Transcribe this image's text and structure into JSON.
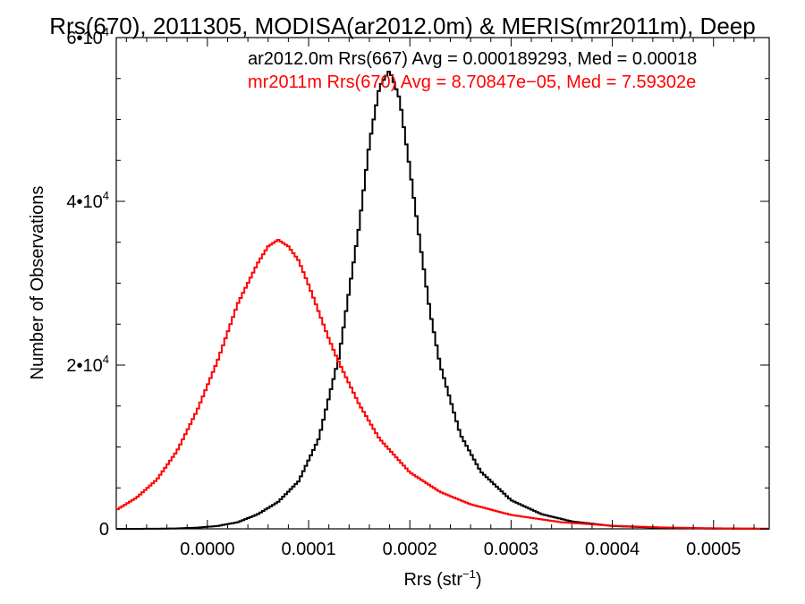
{
  "chart_data": {
    "type": "line",
    "title": "Rrs(670), 2011305, MODISA(ar2012.0m) & MERIS(mr2011m), Deep",
    "xlabel_base": "Rrs (str",
    "xlabel_exp": "−1",
    "xlabel_close": ")",
    "ylabel": "Number of Observations",
    "xlim": [
      -9e-05,
      0.000555
    ],
    "ylim": [
      0,
      60000
    ],
    "x_ticks": [
      {
        "value": 0.0,
        "label": "0.0000"
      },
      {
        "value": 0.0001,
        "label": "0.0001"
      },
      {
        "value": 0.0002,
        "label": "0.0002"
      },
      {
        "value": 0.0003,
        "label": "0.0003"
      },
      {
        "value": 0.0004,
        "label": "0.0004"
      },
      {
        "value": 0.0005,
        "label": "0.0005"
      }
    ],
    "y_ticks": [
      {
        "value": 0,
        "base": "0",
        "exp": ""
      },
      {
        "value": 20000,
        "base": "2•10",
        "exp": "4"
      },
      {
        "value": 40000,
        "base": "4•10",
        "exp": "4"
      },
      {
        "value": 60000,
        "base": "6•10",
        "exp": "4"
      }
    ],
    "grid": false,
    "legend_position": "top-right",
    "series": [
      {
        "name": "ar2012.0m Rrs(667) Avg = 0.000189293, Med = 0.00018",
        "color": "#000000",
        "x": [
          -9e-05,
          -5e-05,
          -3e-05,
          -1e-05,
          1e-05,
          3e-05,
          5e-05,
          7e-05,
          9e-05,
          0.00011,
          0.00013,
          0.00015,
          0.00016,
          0.00017,
          0.00018,
          0.00019,
          0.0002,
          0.00021,
          0.00022,
          0.00023,
          0.00025,
          0.00027,
          0.0003,
          0.00033,
          0.00036,
          0.0004,
          0.00045,
          0.0005,
          0.000555
        ],
        "y": [
          0,
          10,
          50,
          150,
          350,
          800,
          1800,
          3300,
          5800,
          11000,
          21000,
          37000,
          47000,
          54000,
          56000,
          52500,
          44000,
          35000,
          26500,
          20000,
          11500,
          7000,
          3500,
          1800,
          900,
          350,
          120,
          30,
          0
        ]
      },
      {
        "name": "mr2011m Rrs(670) Avg = 8.70847e−05, Med = 7.59302e",
        "color": "#ff0000",
        "x": [
          -9e-05,
          -7e-05,
          -5e-05,
          -3e-05,
          -1e-05,
          1e-05,
          3e-05,
          5e-05,
          6e-05,
          7e-05,
          8e-05,
          9e-05,
          0.0001,
          0.00011,
          0.00012,
          0.00013,
          0.00015,
          0.00017,
          0.0002,
          0.00023,
          0.00026,
          0.0003,
          0.00035,
          0.0004,
          0.00045,
          0.0005,
          0.000555
        ],
        "y": [
          2300,
          3800,
          6000,
          9500,
          14500,
          20500,
          27500,
          32500,
          34500,
          35300,
          34500,
          32800,
          29800,
          26500,
          23200,
          20300,
          15200,
          11000,
          6900,
          4500,
          3000,
          1700,
          800,
          380,
          170,
          70,
          20
        ]
      }
    ]
  }
}
